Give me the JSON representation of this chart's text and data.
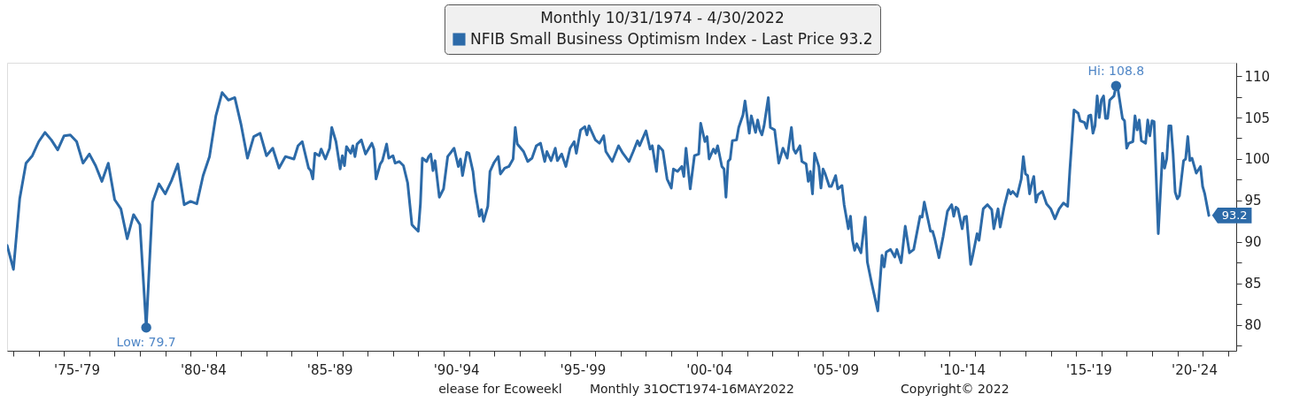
{
  "chart_data": {
    "type": "line",
    "legend_title": "Monthly 10/31/1974 - 4/30/2022",
    "legend": "top",
    "line_style": "solid",
    "x": [
      "1974-10",
      "1975-01",
      "1975-04",
      "1975-07",
      "1975-10",
      "1976-01",
      "1976-04",
      "1976-07",
      "1976-10",
      "1977-01",
      "1977-04",
      "1977-07",
      "1977-10",
      "1978-01",
      "1978-04",
      "1978-07",
      "1978-10",
      "1979-01",
      "1979-04",
      "1979-07",
      "1979-10",
      "1980-01",
      "1980-04",
      "1980-07",
      "1980-10",
      "1981-01",
      "1981-04",
      "1981-07",
      "1981-10",
      "1982-01",
      "1982-04",
      "1982-07",
      "1982-10",
      "1983-01",
      "1983-04",
      "1983-07",
      "1983-10",
      "1984-01",
      "1984-04",
      "1984-07",
      "1984-10",
      "1985-01",
      "1985-04",
      "1985-07",
      "1985-10",
      "1986-02",
      "1986-04",
      "1986-06",
      "1986-09",
      "1986-10",
      "1986-11",
      "1986-12",
      "1987-02",
      "1987-03",
      "1987-05",
      "1987-07",
      "1987-08",
      "1987-10",
      "1987-12",
      "1988-01",
      "1988-02",
      "1988-03",
      "1988-05",
      "1988-06",
      "1988-07",
      "1988-08",
      "1988-10",
      "1988-12",
      "1989-03",
      "1989-04",
      "1989-05",
      "1989-07",
      "1989-08",
      "1989-10",
      "1989-11",
      "1990-01",
      "1990-02",
      "1990-04",
      "1990-06",
      "1990-08",
      "1990-10",
      "1990-11",
      "1991-01",
      "1991-02",
      "1991-03",
      "1991-05",
      "1991-06",
      "1991-07",
      "1991-08",
      "1991-09",
      "1991-11",
      "1992-01",
      "1992-03",
      "1992-06",
      "1992-08",
      "1992-09",
      "1992-10",
      "1992-12",
      "1993-01",
      "1993-03",
      "1993-04",
      "1993-06",
      "1993-07",
      "1993-08",
      "1993-10",
      "1993-11",
      "1994-01",
      "1994-03",
      "1994-04",
      "1994-06",
      "1994-08",
      "1994-10",
      "1994-11",
      "1994-12",
      "1995-03",
      "1995-05",
      "1995-07",
      "1995-09",
      "1995-11",
      "1996-01",
      "1996-02",
      "1996-04",
      "1996-06",
      "1996-07",
      "1996-09",
      "1996-11",
      "1997-01",
      "1997-03",
      "1997-04",
      "1997-06",
      "1997-08",
      "1997-09",
      "1997-10",
      "1998-01",
      "1998-03",
      "1998-05",
      "1998-06",
      "1998-09",
      "1998-12",
      "1999-02",
      "1999-05",
      "1999-07",
      "1999-09",
      "1999-10",
      "2000-01",
      "2000-03",
      "2000-04",
      "2000-06",
      "2000-07",
      "2000-09",
      "2000-11",
      "2001-01",
      "2001-02",
      "2001-04",
      "2001-06",
      "2001-07",
      "2001-08",
      "2001-10",
      "2001-12",
      "2002-02",
      "2002-03",
      "2002-05",
      "2002-06",
      "2002-07",
      "2002-09",
      "2002-10",
      "2002-11",
      "2003-01",
      "2003-02",
      "2003-03",
      "2003-04",
      "2003-05",
      "2003-06",
      "2003-08",
      "2003-09",
      "2003-11",
      "2003-12",
      "2004-02",
      "2004-03",
      "2004-05",
      "2004-06",
      "2004-07",
      "2004-08",
      "2004-09",
      "2004-11",
      "2004-12",
      "2005-02",
      "2005-04",
      "2005-06",
      "2005-08",
      "2005-10",
      "2005-11",
      "2005-12",
      "2006-02",
      "2006-03",
      "2006-05",
      "2006-06",
      "2006-07",
      "2006-08",
      "2006-09",
      "2006-11",
      "2006-12",
      "2007-01",
      "2007-02",
      "2007-04",
      "2007-05",
      "2007-07",
      "2007-08",
      "2007-10",
      "2007-11",
      "2008-01",
      "2008-02",
      "2008-03",
      "2008-04",
      "2008-05",
      "2008-07",
      "2008-09",
      "2008-10",
      "2008-12",
      "2009-03",
      "2009-05",
      "2009-06",
      "2009-07",
      "2009-09",
      "2009-11",
      "2009-12",
      "2010-02",
      "2010-04",
      "2010-06",
      "2010-08",
      "2010-11",
      "2010-12",
      "2011-01",
      "2011-04",
      "2011-05",
      "2011-06",
      "2011-08",
      "2011-10",
      "2011-12",
      "2012-02",
      "2012-03",
      "2012-04",
      "2012-05",
      "2012-07",
      "2012-08",
      "2012-09",
      "2012-11",
      "2012-12",
      "2013-02",
      "2013-03",
      "2013-05",
      "2013-07",
      "2013-09",
      "2013-10",
      "2013-12",
      "2014-01",
      "2014-03",
      "2014-05",
      "2014-06",
      "2014-07",
      "2014-09",
      "2014-11",
      "2014-12",
      "2015-01",
      "2015-02",
      "2015-03",
      "2015-04",
      "2015-05",
      "2015-06",
      "2015-07",
      "2015-09",
      "2015-11",
      "2016-01",
      "2016-03",
      "2016-05",
      "2016-07",
      "2016-09",
      "2016-10",
      "2016-12",
      "2017-02",
      "2017-03",
      "2017-05",
      "2017-06",
      "2017-07",
      "2017-08",
      "2017-09",
      "2017-10",
      "2017-11",
      "2017-12",
      "2018-01",
      "2018-02",
      "2018-03",
      "2018-04",
      "2018-05",
      "2018-07",
      "2018-08",
      "2018-09",
      "2018-11",
      "2018-12",
      "2019-01",
      "2019-02",
      "2019-04",
      "2019-05",
      "2019-06",
      "2019-07",
      "2019-08",
      "2019-10",
      "2019-11",
      "2019-12",
      "2020-01",
      "2020-02",
      "2020-04",
      "2020-06",
      "2020-07",
      "2020-08",
      "2020-09",
      "2020-10",
      "2020-11",
      "2020-12",
      "2021-01",
      "2021-02",
      "2021-04",
      "2021-05",
      "2021-06",
      "2021-07",
      "2021-08",
      "2021-10",
      "2021-12",
      "2022-01",
      "2022-02",
      "2022-04"
    ],
    "series": [
      {
        "name": "NFIB Small Business Optimism Index - Last Price 93.2",
        "color": "#2c6aa8",
        "values": [
          89.6,
          86.7,
          95.2,
          99.5,
          100.4,
          102.1,
          103.2,
          102.3,
          101.1,
          102.8,
          102.9,
          102.1,
          99.5,
          100.6,
          99.2,
          97.3,
          99.5,
          95.1,
          94.0,
          90.4,
          93.3,
          92.1,
          79.7,
          94.8,
          97.0,
          95.8,
          97.4,
          99.4,
          94.5,
          94.9,
          94.6,
          98.0,
          100.3,
          105.2,
          108.0,
          107.1,
          107.4,
          104.1,
          100.1,
          102.7,
          103.1,
          100.4,
          101.3,
          98.9,
          100.3,
          100.0,
          101.6,
          102.1,
          98.9,
          98.6,
          97.6,
          100.7,
          100.4,
          101.2,
          100.0,
          101.3,
          103.8,
          102.1,
          98.8,
          100.4,
          99.2,
          101.5,
          100.7,
          101.6,
          100.3,
          101.8,
          102.3,
          100.6,
          101.9,
          101.2,
          97.6,
          99.4,
          99.8,
          101.8,
          100.1,
          100.4,
          99.5,
          99.7,
          99.2,
          97.1,
          92.1,
          91.8,
          91.3,
          94.6,
          100.1,
          99.7,
          100.3,
          100.6,
          98.6,
          99.8,
          95.4,
          96.4,
          100.3,
          101.3,
          99.1,
          100.0,
          98.0,
          100.8,
          100.7,
          98.5,
          96.1,
          93.1,
          93.9,
          92.5,
          94.3,
          98.5,
          99.6,
          100.3,
          98.2,
          98.9,
          99.1,
          100.0,
          103.8,
          101.8,
          100.9,
          99.7,
          100.1,
          101.6,
          101.9,
          99.7,
          100.9,
          99.8,
          101.3,
          99.8,
          100.6,
          99.1,
          101.3,
          102.1,
          100.7,
          103.5,
          103.9,
          102.9,
          104.0,
          102.3,
          101.9,
          102.8,
          100.9,
          99.7,
          101.6,
          100.7,
          99.7,
          100.9,
          102.2,
          101.6,
          103.4,
          101.2,
          101.6,
          98.5,
          101.6,
          101.0,
          97.6,
          96.5,
          98.8,
          98.5,
          99.1,
          97.9,
          101.3,
          96.4,
          100.4,
          100.6,
          104.3,
          102.1,
          102.7,
          100.0,
          101.2,
          100.7,
          101.6,
          99.1,
          98.8,
          95.4,
          99.7,
          100.0,
          102.2,
          102.3,
          103.8,
          105.3,
          107.0,
          103.1,
          105.2,
          103.2,
          104.7,
          103.5,
          102.9,
          104.0,
          107.4,
          103.8,
          103.5,
          99.5,
          101.3,
          100.1,
          103.8,
          101.2,
          100.7,
          101.6,
          99.7,
          99.4,
          97.3,
          98.5,
          95.8,
          100.7,
          99.1,
          96.5,
          98.8,
          98.2,
          96.7,
          96.7,
          98.0,
          96.4,
          96.8,
          94.5,
          91.6,
          93.1,
          90.2,
          89.0,
          89.8,
          88.7,
          93.0,
          87.6,
          85.1,
          81.7,
          88.4,
          87.0,
          88.8,
          89.1,
          88.2,
          89.1,
          87.5,
          91.9,
          88.7,
          89.1,
          93.1,
          93.0,
          94.8,
          91.3,
          91.3,
          90.4,
          88.1,
          90.7,
          93.7,
          94.5,
          93.1,
          94.2,
          94.0,
          91.6,
          93.0,
          93.1,
          87.3,
          88.4,
          91.0,
          90.2,
          94.0,
          94.5,
          93.9,
          91.6,
          94.0,
          91.8,
          94.3,
          96.3,
          95.8,
          96.1,
          95.5,
          97.6,
          100.3,
          98.2,
          98.0,
          95.8,
          97.0,
          97.9,
          94.8,
          95.7,
          96.1,
          94.6,
          94.0,
          92.8,
          94.0,
          94.7,
          94.3,
          98.5,
          105.9,
          105.5,
          104.6,
          104.4,
          103.7,
          105.2,
          105.3,
          103.1,
          104.0,
          107.6,
          105.0,
          107.1,
          107.6,
          104.9,
          104.9,
          107.1,
          107.6,
          108.8,
          108.2,
          104.9,
          104.6,
          101.3,
          101.9,
          102.1,
          105.2,
          103.5,
          104.7,
          102.2,
          101.9,
          104.7,
          102.8,
          104.6,
          104.5,
          91.0,
          100.7,
          98.9,
          100.0,
          104.0,
          104.0,
          100.6,
          96.0,
          95.2,
          95.6,
          99.8,
          100.0,
          102.7,
          99.8,
          100.1,
          98.3,
          99.1,
          96.7,
          95.8,
          93.2
        ]
      },
      {
        "type": "scatter",
        "color": "#2c6aa8",
        "x": [
          "1980-04",
          "2018-08"
        ],
        "values": [
          79.7,
          108.8
        ]
      }
    ],
    "xlim": [
      "1974-10",
      "2023-05"
    ],
    "xticks": [
      {
        "value": "1975",
        "label": null
      },
      {
        "value": "1976",
        "label": null
      },
      {
        "value": "1977",
        "label": null
      },
      {
        "value": "1978",
        "label": null
      },
      {
        "value": "1979",
        "label": null
      },
      {
        "value": "1980",
        "label": null
      },
      {
        "value": "1981",
        "label": null
      },
      {
        "value": "1982",
        "label": null
      },
      {
        "value": "1983",
        "label": null
      },
      {
        "value": "1984",
        "label": null
      },
      {
        "value": "1985",
        "label": null
      },
      {
        "value": "1986",
        "label": null
      },
      {
        "value": "1987",
        "label": null
      },
      {
        "value": "1988",
        "label": null
      },
      {
        "value": "1989",
        "label": null
      },
      {
        "value": "1990",
        "label": null
      },
      {
        "value": "1991",
        "label": null
      },
      {
        "value": "1992",
        "label": null
      },
      {
        "value": "1993",
        "label": null
      },
      {
        "value": "1994",
        "label": null
      },
      {
        "value": "1995",
        "label": null
      },
      {
        "value": "1996",
        "label": null
      },
      {
        "value": "1997",
        "label": null
      },
      {
        "value": "1998",
        "label": null
      },
      {
        "value": "1999",
        "label": null
      },
      {
        "value": "2000",
        "label": null
      },
      {
        "value": "2001",
        "label": null
      },
      {
        "value": "2002",
        "label": null
      },
      {
        "value": "2003",
        "label": null
      },
      {
        "value": "2004",
        "label": null
      },
      {
        "value": "2005",
        "label": null
      },
      {
        "value": "2006",
        "label": null
      },
      {
        "value": "2007",
        "label": null
      },
      {
        "value": "2008",
        "label": null
      },
      {
        "value": "2009",
        "label": null
      },
      {
        "value": "2010",
        "label": null
      },
      {
        "value": "2011",
        "label": null
      },
      {
        "value": "2012",
        "label": null
      },
      {
        "value": "2013",
        "label": null
      },
      {
        "value": "2014",
        "label": null
      },
      {
        "value": "2015",
        "label": null
      },
      {
        "value": "2016",
        "label": null
      },
      {
        "value": "2017",
        "label": null
      },
      {
        "value": "2018",
        "label": null
      },
      {
        "value": "2019",
        "label": null
      },
      {
        "value": "2020",
        "label": null
      },
      {
        "value": "2021",
        "label": null
      },
      {
        "value": "2022",
        "label": null
      },
      {
        "value": "2023",
        "label": null
      },
      {
        "value": "1977-07",
        "label": "'75-'79"
      },
      {
        "value": "1982-07",
        "label": "'80-'84"
      },
      {
        "value": "1987-07",
        "label": "'85-'89"
      },
      {
        "value": "1992-07",
        "label": "'90-'94"
      },
      {
        "value": "1997-07",
        "label": "'95-'99"
      },
      {
        "value": "2002-07",
        "label": "'00-'04"
      },
      {
        "value": "2007-07",
        "label": "'05-'09"
      },
      {
        "value": "2012-07",
        "label": "'10-'14"
      },
      {
        "value": "2017-07",
        "label": "'15-'19"
      },
      {
        "value": "2021-09",
        "label": "'20-'24"
      }
    ],
    "ylim": [
      76.9,
      111.6
    ],
    "yticks": [
      {
        "value": 77.5,
        "label": null
      },
      80,
      {
        "value": 82.5,
        "label": null
      },
      85,
      {
        "value": 87.5,
        "label": null
      },
      90,
      {
        "value": 92.5,
        "label": null
      },
      95,
      {
        "value": 97.5,
        "label": null
      },
      100,
      {
        "value": 102.5,
        "label": null
      },
      105,
      {
        "value": 107.5,
        "label": null
      },
      110
    ],
    "annotations": [
      {
        "text": "Low: 79.7",
        "x": "1980-04",
        "y": 79.7
      },
      {
        "text": "Hi: 108.8",
        "x": "2018-08",
        "y": 108.8
      },
      {
        "text": "93.2",
        "x": "2022-04",
        "y": 93.2
      },
      "elease for Ecoweekl",
      "Monthly 31OCT1974-16MAY2022",
      "Copyright© 2022"
    ]
  }
}
